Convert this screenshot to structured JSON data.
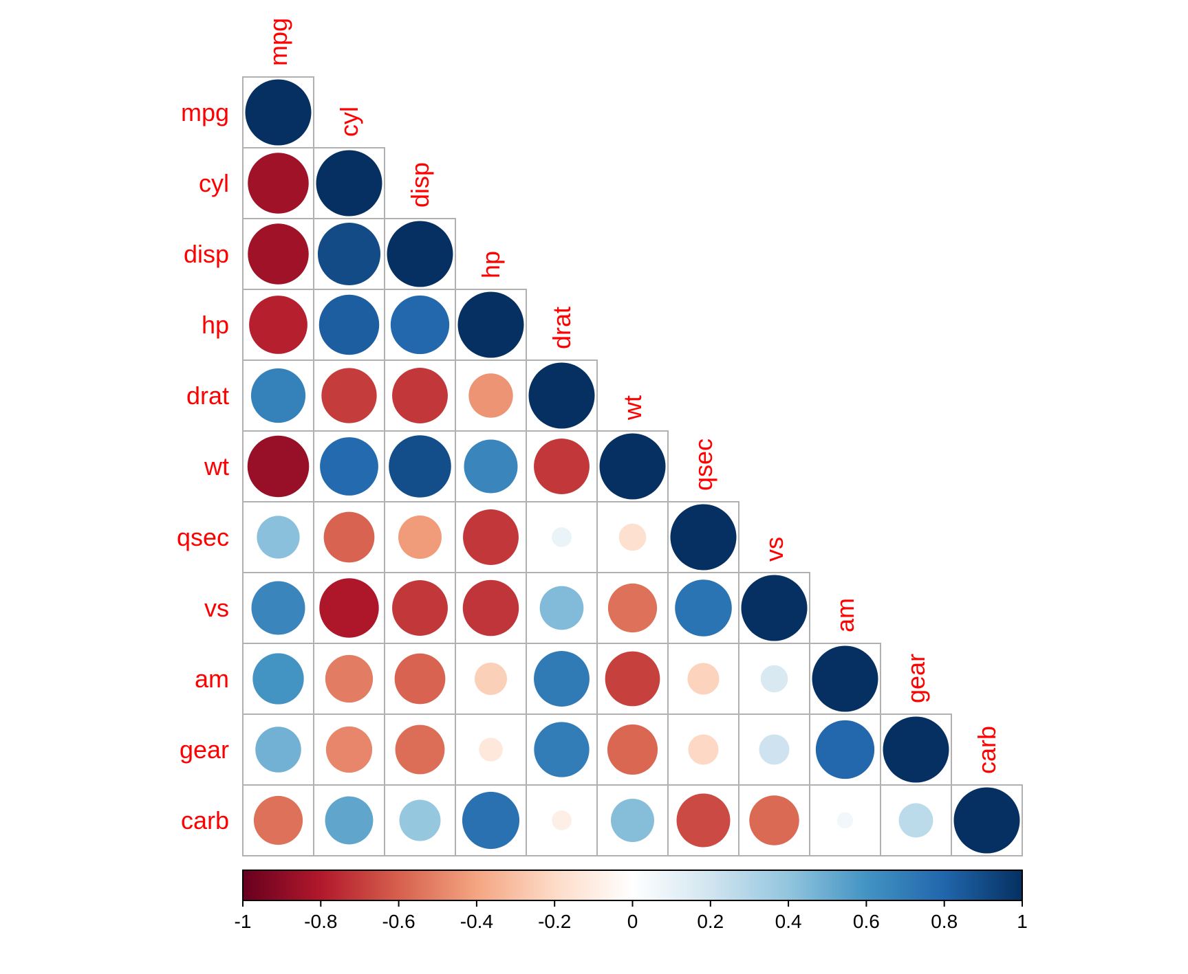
{
  "chart_data": {
    "type": "heatmap",
    "style": "circle",
    "layout": "lower-triangle",
    "variables": [
      "mpg",
      "cyl",
      "disp",
      "hp",
      "drat",
      "wt",
      "qsec",
      "vs",
      "am",
      "gear",
      "carb"
    ],
    "correlations": [
      [
        1.0,
        -0.85,
        -0.85,
        -0.78,
        0.68,
        -0.87,
        0.42,
        0.66,
        0.6,
        0.48,
        -0.55
      ],
      [
        -0.85,
        1.0,
        0.9,
        0.83,
        -0.7,
        0.78,
        -0.59,
        -0.81,
        -0.52,
        -0.49,
        0.53
      ],
      [
        -0.85,
        0.9,
        1.0,
        0.79,
        -0.71,
        0.89,
        -0.43,
        -0.71,
        -0.59,
        -0.56,
        0.39
      ],
      [
        -0.78,
        0.83,
        0.79,
        1.0,
        -0.45,
        0.66,
        -0.71,
        -0.72,
        -0.24,
        -0.13,
        0.75
      ],
      [
        0.68,
        -0.7,
        -0.71,
        -0.45,
        1.0,
        -0.71,
        0.09,
        0.44,
        0.71,
        0.7,
        -0.09
      ],
      [
        -0.87,
        0.78,
        0.89,
        0.66,
        -0.71,
        1.0,
        -0.17,
        -0.55,
        -0.69,
        -0.58,
        0.43
      ],
      [
        0.42,
        -0.59,
        -0.43,
        -0.71,
        0.09,
        -0.17,
        1.0,
        0.74,
        -0.23,
        -0.21,
        -0.66
      ],
      [
        0.66,
        -0.81,
        -0.71,
        -0.72,
        0.44,
        -0.55,
        0.74,
        1.0,
        0.17,
        0.21,
        -0.57
      ],
      [
        0.6,
        -0.52,
        -0.59,
        -0.24,
        0.71,
        -0.69,
        -0.23,
        0.17,
        1.0,
        0.79,
        0.06
      ],
      [
        0.48,
        -0.49,
        -0.56,
        -0.13,
        0.7,
        -0.58,
        -0.21,
        0.21,
        0.79,
        1.0,
        0.27
      ],
      [
        -0.55,
        0.53,
        0.39,
        0.75,
        -0.09,
        0.43,
        -0.66,
        -0.57,
        0.06,
        0.27,
        1.0
      ]
    ],
    "colorbar": {
      "range": [
        -1,
        1
      ],
      "ticks": [
        -1,
        -0.8,
        -0.6,
        -0.4,
        -0.2,
        0,
        0.2,
        0.4,
        0.6,
        0.8,
        1
      ],
      "tick_labels": [
        "-1",
        "-0.8",
        "-0.6",
        "-0.4",
        "-0.2",
        "0",
        "0.2",
        "0.4",
        "0.6",
        "0.8",
        "1"
      ]
    },
    "palette": [
      "#67001F",
      "#B2182B",
      "#D6604D",
      "#F4A582",
      "#FDDBC7",
      "#FFFFFF",
      "#D1E5F0",
      "#92C5DE",
      "#4393C3",
      "#2166AC",
      "#053061"
    ],
    "label_color": "#FF0000",
    "grid_color": "#B0B0B0"
  }
}
